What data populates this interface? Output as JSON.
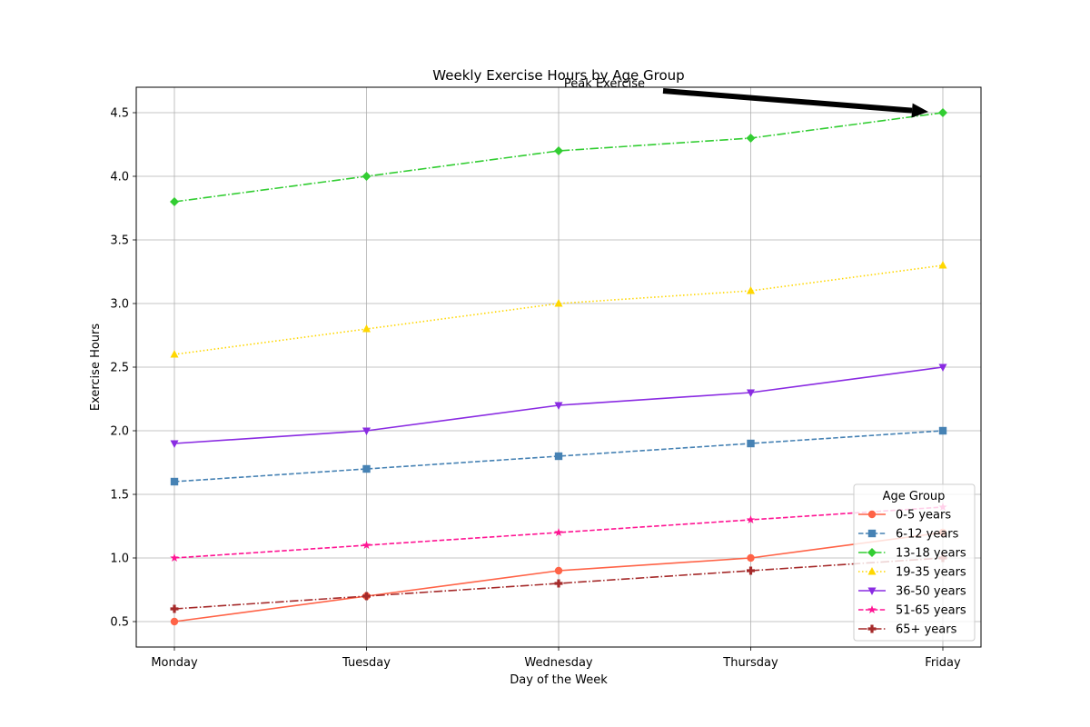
{
  "chart_data": {
    "type": "line",
    "title": "Weekly Exercise Hours by Age Group",
    "xlabel": "Day of the Week",
    "ylabel": "Exercise Hours",
    "categories": [
      "Monday",
      "Tuesday",
      "Wednesday",
      "Thursday",
      "Friday"
    ],
    "ylim": [
      0.3,
      4.7
    ],
    "yticks": [
      "0.5",
      "1.0",
      "1.5",
      "2.0",
      "2.5",
      "3.0",
      "3.5",
      "4.0",
      "4.5"
    ],
    "grid": true,
    "legend": {
      "title": "Age Group",
      "position": "lower right"
    },
    "series": [
      {
        "name": "0-5 years",
        "values": [
          0.5,
          0.7,
          0.9,
          1.0,
          1.2
        ],
        "color": "#ff6347",
        "linestyle": "solid",
        "marker": "circle"
      },
      {
        "name": "6-12 years",
        "values": [
          1.6,
          1.7,
          1.8,
          1.9,
          2.0
        ],
        "color": "#4682b4",
        "linestyle": "dashed",
        "marker": "square"
      },
      {
        "name": "13-18 years",
        "values": [
          3.8,
          4.0,
          4.2,
          4.3,
          4.5
        ],
        "color": "#32cd32",
        "linestyle": "dashdot",
        "marker": "diamond"
      },
      {
        "name": "19-35 years",
        "values": [
          2.6,
          2.8,
          3.0,
          3.1,
          3.3
        ],
        "color": "#ffd700",
        "linestyle": "dotted",
        "marker": "triangle-up"
      },
      {
        "name": "36-50 years",
        "values": [
          1.9,
          2.0,
          2.2,
          2.3,
          2.5
        ],
        "color": "#8a2be2",
        "linestyle": "solid",
        "marker": "triangle-down"
      },
      {
        "name": "51-65 years",
        "values": [
          1.0,
          1.1,
          1.2,
          1.3,
          1.4
        ],
        "color": "#ff1493",
        "linestyle": "dashed",
        "marker": "star"
      },
      {
        "name": "65+ years",
        "values": [
          0.6,
          0.7,
          0.8,
          0.9,
          1.0
        ],
        "color": "#a52a2a",
        "linestyle": "dashdot",
        "marker": "plus"
      }
    ],
    "annotations": [
      {
        "text": "Peak Exercise",
        "target_category": "Friday",
        "target_value": 4.5
      }
    ]
  }
}
